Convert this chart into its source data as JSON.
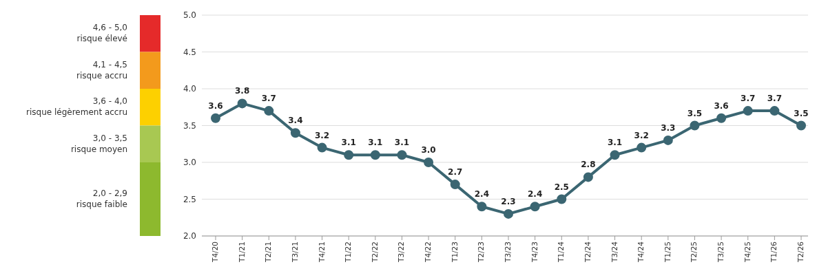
{
  "chart_data": {
    "type": "line",
    "categories": [
      "T4/20",
      "T1/21",
      "T2/21",
      "T3/21",
      "T4/21",
      "T1/22",
      "T2/22",
      "T3/22",
      "T4/22",
      "T1/23",
      "T2/23",
      "T3/23",
      "T4/23",
      "T1/24",
      "T2/24",
      "T3/24",
      "T4/24",
      "T1/25",
      "T2/25",
      "T3/25",
      "T4/25",
      "T1/26",
      "T2/26"
    ],
    "series": [
      {
        "color": "#3b6672",
        "values": [
          3.6,
          3.8,
          3.7,
          3.4,
          3.2,
          3.1,
          3.1,
          3.1,
          3.0,
          2.7,
          2.4,
          2.3,
          2.4,
          2.5,
          2.8,
          3.1,
          3.2,
          3.3,
          3.5,
          3.6,
          3.7,
          3.7,
          3.5
        ],
        "value_labels": [
          "3.6",
          "3.8",
          "3.7",
          "3.4",
          "3.2",
          "3.1",
          "3.1",
          "3.1",
          "3.0",
          "2.7",
          "2.4",
          "2.3",
          "2.4",
          "2.5",
          "2.8",
          "3.1",
          "3.2",
          "3.3",
          "3.5",
          "3.6",
          "3.7",
          "3.7",
          "3.5"
        ]
      }
    ],
    "ylim": [
      2.0,
      5.0
    ],
    "yticks": [
      {
        "value": 2.0,
        "label": "2.0"
      },
      2.5,
      {
        "value": 3.0,
        "label": "3.0"
      },
      3.5,
      {
        "value": 4.0,
        "label": "4.0"
      },
      4.5,
      {
        "value": 5.0,
        "label": "5.0"
      }
    ],
    "grid": "y",
    "marker": "circle",
    "line_style": "solid",
    "annotations": [
      "4,6 - 5,0\nrisque élevé",
      "4,1 - 4,5\nrisque accru",
      "3,6 - 4,0\nrisque légèrement accru",
      "3,0 - 3,5\nrisque moyen",
      "2,0 - 2,9\nrisque faible"
    ]
  }
}
